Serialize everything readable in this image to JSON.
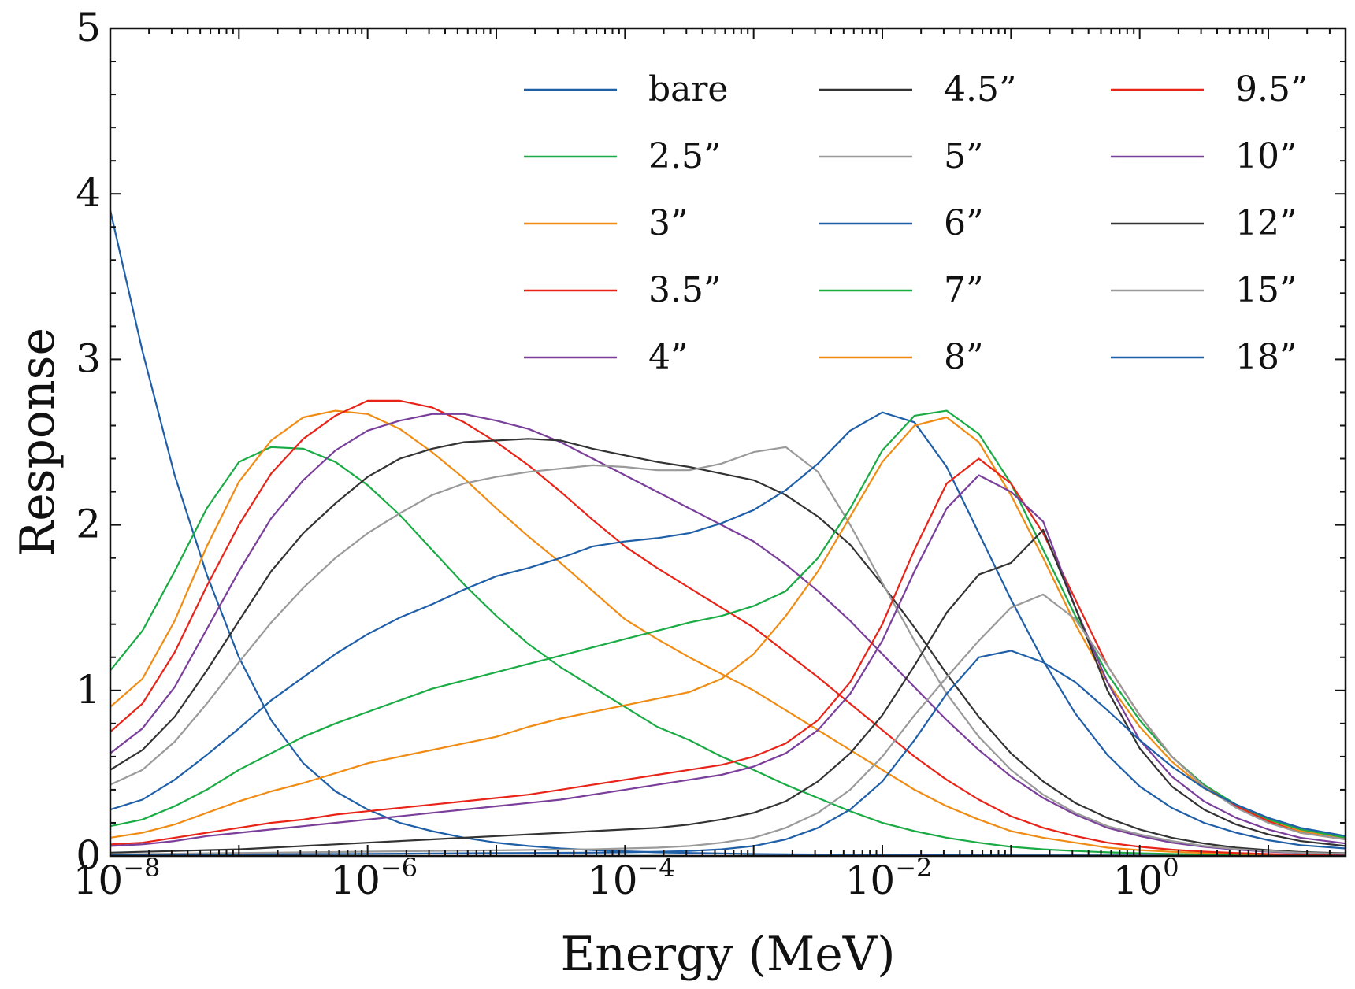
{
  "chart_data": {
    "type": "line",
    "title": "",
    "xlabel": "Energy (MeV)",
    "ylabel": "Response",
    "xscale": "log",
    "xlim_log10": [
      -8,
      1.6
    ],
    "ylim": [
      0,
      5
    ],
    "x_ticks": [
      {
        "exp": -8,
        "base": "10",
        "sup": "−8"
      },
      {
        "exp": -6,
        "base": "10",
        "sup": "−6"
      },
      {
        "exp": -4,
        "base": "10",
        "sup": "−4"
      },
      {
        "exp": -2,
        "base": "10",
        "sup": "−2"
      },
      {
        "exp": 0,
        "base": "10",
        "sup": "0"
      }
    ],
    "y_ticks": [
      {
        "value": 0,
        "label": "0"
      },
      {
        "value": 1,
        "label": "1"
      },
      {
        "value": 2,
        "label": "2"
      },
      {
        "value": 3,
        "label": "3"
      },
      {
        "value": 4,
        "label": "4"
      },
      {
        "value": 5,
        "label": "5"
      }
    ],
    "legend_position": "top-right",
    "legend_columns": 3,
    "x_log10": [
      -8,
      -7.75,
      -7.5,
      -7.25,
      -7,
      -6.75,
      -6.5,
      -6.25,
      -6,
      -5.75,
      -5.5,
      -5.25,
      -5,
      -4.75,
      -4.5,
      -4.25,
      -4,
      -3.75,
      -3.5,
      -3.25,
      -3,
      -2.75,
      -2.5,
      -2.25,
      -2,
      -1.75,
      -1.5,
      -1.25,
      -1,
      -0.75,
      -0.5,
      -0.25,
      0,
      0.25,
      0.5,
      0.75,
      1,
      1.25,
      1.6
    ],
    "series": [
      {
        "name": "bare",
        "color": "#1f5fa8",
        "y": [
          3.9,
          3.05,
          2.3,
          1.7,
          1.2,
          0.82,
          0.56,
          0.39,
          0.28,
          0.2,
          0.15,
          0.11,
          0.08,
          0.06,
          0.045,
          0.035,
          0.028,
          0.022,
          0.018,
          0.015,
          0.012,
          0.01,
          0.009,
          0.008,
          0.007,
          0.006,
          0.005,
          0.005,
          0.004,
          0.004,
          0.004,
          0.003,
          0.003,
          0.003,
          0.002,
          0.002,
          0.002,
          0.002,
          0.002
        ]
      },
      {
        "name": "2.5”",
        "color": "#1aab45",
        "y": [
          1.12,
          1.36,
          1.72,
          2.1,
          2.38,
          2.47,
          2.46,
          2.38,
          2.24,
          2.06,
          1.85,
          1.64,
          1.45,
          1.28,
          1.14,
          1.02,
          0.9,
          0.78,
          0.7,
          0.6,
          0.52,
          0.43,
          0.35,
          0.27,
          0.2,
          0.15,
          0.11,
          0.08,
          0.055,
          0.04,
          0.03,
          0.022,
          0.016,
          0.012,
          0.009,
          0.007,
          0.005,
          0.004,
          0.003
        ]
      },
      {
        "name": "3”",
        "color": "#f08c14",
        "y": [
          0.9,
          1.07,
          1.42,
          1.87,
          2.26,
          2.51,
          2.65,
          2.69,
          2.67,
          2.58,
          2.44,
          2.28,
          2.1,
          1.93,
          1.77,
          1.6,
          1.43,
          1.31,
          1.2,
          1.1,
          1.0,
          0.88,
          0.76,
          0.64,
          0.52,
          0.4,
          0.3,
          0.22,
          0.15,
          0.11,
          0.08,
          0.05,
          0.035,
          0.025,
          0.018,
          0.013,
          0.009,
          0.006,
          0.004
        ]
      },
      {
        "name": "3.5”",
        "color": "#e82418",
        "y": [
          0.75,
          0.92,
          1.23,
          1.63,
          2.0,
          2.31,
          2.52,
          2.66,
          2.75,
          2.75,
          2.71,
          2.62,
          2.5,
          2.36,
          2.2,
          2.03,
          1.87,
          1.74,
          1.62,
          1.5,
          1.38,
          1.23,
          1.08,
          0.92,
          0.76,
          0.6,
          0.46,
          0.34,
          0.24,
          0.17,
          0.12,
          0.08,
          0.055,
          0.038,
          0.026,
          0.018,
          0.012,
          0.008,
          0.005
        ]
      },
      {
        "name": "4”",
        "color": "#7a3f9a",
        "y": [
          0.62,
          0.77,
          1.02,
          1.37,
          1.72,
          2.04,
          2.27,
          2.45,
          2.57,
          2.63,
          2.67,
          2.67,
          2.63,
          2.58,
          2.5,
          2.4,
          2.3,
          2.2,
          2.1,
          2.0,
          1.9,
          1.76,
          1.6,
          1.42,
          1.22,
          1.02,
          0.82,
          0.64,
          0.48,
          0.35,
          0.25,
          0.17,
          0.12,
          0.08,
          0.055,
          0.038,
          0.026,
          0.018,
          0.012
        ]
      },
      {
        "name": "4.5”",
        "color": "#333333",
        "y": [
          0.52,
          0.64,
          0.84,
          1.12,
          1.42,
          1.72,
          1.95,
          2.13,
          2.29,
          2.4,
          2.46,
          2.5,
          2.51,
          2.52,
          2.51,
          2.46,
          2.42,
          2.38,
          2.35,
          2.31,
          2.27,
          2.18,
          2.05,
          1.88,
          1.64,
          1.38,
          1.1,
          0.84,
          0.62,
          0.45,
          0.32,
          0.23,
          0.16,
          0.11,
          0.075,
          0.05,
          0.035,
          0.024,
          0.016
        ]
      },
      {
        "name": "5”",
        "color": "#9a9a9a",
        "y": [
          0.43,
          0.52,
          0.69,
          0.92,
          1.17,
          1.41,
          1.62,
          1.8,
          1.95,
          2.07,
          2.18,
          2.25,
          2.29,
          2.32,
          2.34,
          2.36,
          2.35,
          2.33,
          2.33,
          2.37,
          2.44,
          2.47,
          2.32,
          2.0,
          1.65,
          1.3,
          0.98,
          0.72,
          0.52,
          0.37,
          0.26,
          0.18,
          0.13,
          0.09,
          0.06,
          0.042,
          0.029,
          0.02,
          0.014
        ]
      },
      {
        "name": "6”",
        "color": "#1f5fa8",
        "y": [
          0.28,
          0.34,
          0.46,
          0.61,
          0.77,
          0.94,
          1.08,
          1.22,
          1.34,
          1.44,
          1.52,
          1.61,
          1.69,
          1.74,
          1.8,
          1.87,
          1.9,
          1.92,
          1.95,
          2.01,
          2.09,
          2.21,
          2.37,
          2.57,
          2.68,
          2.62,
          2.35,
          1.95,
          1.55,
          1.18,
          0.86,
          0.61,
          0.42,
          0.29,
          0.2,
          0.14,
          0.095,
          0.065,
          0.045
        ]
      },
      {
        "name": "7”",
        "color": "#1aab45",
        "y": [
          0.18,
          0.22,
          0.3,
          0.4,
          0.52,
          0.62,
          0.72,
          0.8,
          0.87,
          0.94,
          1.01,
          1.06,
          1.11,
          1.16,
          1.21,
          1.26,
          1.31,
          1.36,
          1.41,
          1.45,
          1.51,
          1.6,
          1.8,
          2.1,
          2.45,
          2.66,
          2.69,
          2.55,
          2.25,
          1.85,
          1.45,
          1.1,
          0.82,
          0.6,
          0.43,
          0.31,
          0.22,
          0.16,
          0.11
        ]
      },
      {
        "name": "8”",
        "color": "#f08c14",
        "y": [
          0.11,
          0.14,
          0.19,
          0.26,
          0.33,
          0.39,
          0.44,
          0.5,
          0.56,
          0.6,
          0.64,
          0.68,
          0.72,
          0.78,
          0.83,
          0.87,
          0.91,
          0.95,
          0.99,
          1.07,
          1.22,
          1.45,
          1.72,
          2.05,
          2.38,
          2.6,
          2.65,
          2.5,
          2.18,
          1.8,
          1.4,
          1.05,
          0.78,
          0.57,
          0.41,
          0.3,
          0.21,
          0.15,
          0.1
        ]
      },
      {
        "name": "9.5”",
        "color": "#e82418",
        "y": [
          0.07,
          0.08,
          0.11,
          0.14,
          0.17,
          0.2,
          0.22,
          0.25,
          0.27,
          0.29,
          0.31,
          0.33,
          0.35,
          0.37,
          0.4,
          0.43,
          0.46,
          0.49,
          0.52,
          0.55,
          0.6,
          0.68,
          0.82,
          1.05,
          1.4,
          1.85,
          2.25,
          2.4,
          2.25,
          1.95,
          1.55,
          1.15,
          0.85,
          0.6,
          0.42,
          0.3,
          0.21,
          0.14,
          0.1
        ]
      },
      {
        "name": "10”",
        "color": "#7a3f9a",
        "y": [
          0.06,
          0.07,
          0.09,
          0.12,
          0.14,
          0.16,
          0.18,
          0.2,
          0.22,
          0.24,
          0.26,
          0.28,
          0.3,
          0.32,
          0.34,
          0.37,
          0.4,
          0.43,
          0.46,
          0.49,
          0.54,
          0.62,
          0.76,
          0.98,
          1.3,
          1.72,
          2.1,
          2.3,
          2.2,
          2.02,
          1.5,
          1.05,
          0.7,
          0.48,
          0.33,
          0.23,
          0.16,
          0.11,
          0.075
        ]
      },
      {
        "name": "12”",
        "color": "#333333",
        "y": [
          0.02,
          0.025,
          0.03,
          0.035,
          0.04,
          0.05,
          0.06,
          0.07,
          0.08,
          0.09,
          0.1,
          0.11,
          0.12,
          0.13,
          0.14,
          0.15,
          0.16,
          0.17,
          0.19,
          0.22,
          0.26,
          0.33,
          0.45,
          0.62,
          0.85,
          1.15,
          1.47,
          1.7,
          1.77,
          1.97,
          1.5,
          1.0,
          0.65,
          0.42,
          0.28,
          0.19,
          0.13,
          0.09,
          0.06
        ]
      },
      {
        "name": "15”",
        "color": "#9a9a9a",
        "y": [
          0.01,
          0.012,
          0.014,
          0.016,
          0.018,
          0.02,
          0.022,
          0.024,
          0.026,
          0.028,
          0.03,
          0.032,
          0.034,
          0.036,
          0.038,
          0.04,
          0.045,
          0.05,
          0.06,
          0.08,
          0.11,
          0.17,
          0.26,
          0.4,
          0.6,
          0.85,
          1.08,
          1.3,
          1.5,
          1.58,
          1.43,
          1.15,
          0.85,
          0.6,
          0.42,
          0.29,
          0.2,
          0.14,
          0.1
        ]
      },
      {
        "name": "18”",
        "color": "#1f5fa8",
        "y": [
          0.005,
          0.006,
          0.007,
          0.008,
          0.009,
          0.01,
          0.011,
          0.012,
          0.013,
          0.014,
          0.015,
          0.016,
          0.017,
          0.018,
          0.019,
          0.02,
          0.022,
          0.025,
          0.03,
          0.04,
          0.06,
          0.1,
          0.17,
          0.28,
          0.45,
          0.7,
          0.98,
          1.2,
          1.24,
          1.17,
          1.05,
          0.88,
          0.7,
          0.54,
          0.41,
          0.31,
          0.23,
          0.17,
          0.12
        ]
      }
    ]
  }
}
